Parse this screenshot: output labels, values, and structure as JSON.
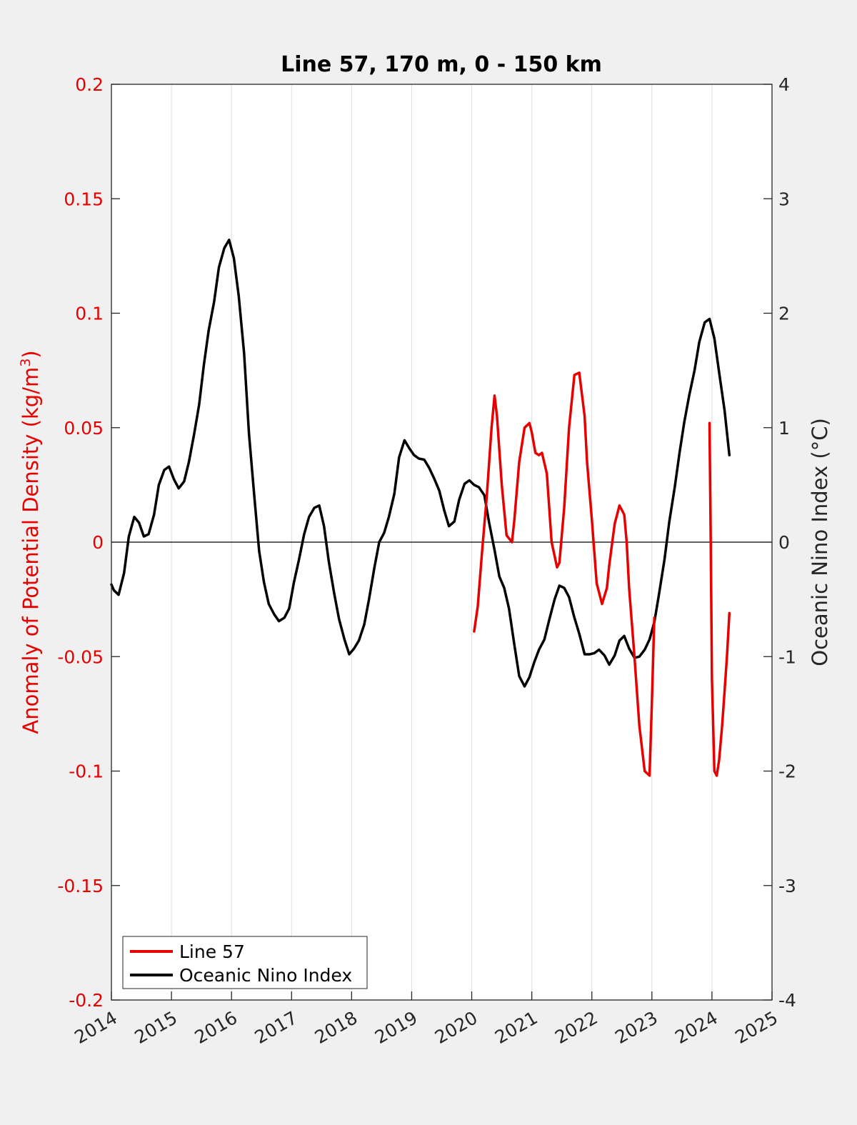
{
  "chart_data": {
    "type": "line",
    "title": "Line 57, 170 m, 0 - 150 km",
    "ylabel_left": "Anomaly of Potential Density (kg/m",
    "ylabel_left_sup": "3",
    "ylabel_left_close": ")",
    "ylabel_right": "Oceanic Nino Index (°C)",
    "xlim": [
      2014,
      2025
    ],
    "ylim_left": [
      -0.2,
      0.2
    ],
    "ylim_right": [
      -4,
      4
    ],
    "x_ticks": [
      "2014",
      "2015",
      "2016",
      "2017",
      "2018",
      "2019",
      "2020",
      "2021",
      "2022",
      "2023",
      "2024",
      "2025"
    ],
    "y_left_ticks": [
      "0.2",
      "0.15",
      "0.1",
      "0.05",
      "0",
      "-0.05",
      "-0.1",
      "-0.15",
      "-0.2"
    ],
    "y_right_ticks": [
      "4",
      "3",
      "2",
      "1",
      "0",
      "-1",
      "-2",
      "-3",
      "-4"
    ],
    "grid": "vertical",
    "legend_position": "bottom-left",
    "series": [
      {
        "name": "Line 57",
        "axis": "left",
        "color": "#e60000",
        "segments": [
          {
            "x": [
              2020.04,
              2020.1,
              2020.17,
              2020.25,
              2020.33,
              2020.38,
              2020.42,
              2020.5,
              2020.58,
              2020.67,
              2020.71,
              2020.79,
              2020.88,
              2020.96,
              2021.0,
              2021.06,
              2021.12,
              2021.17,
              2021.25,
              2021.33,
              2021.42,
              2021.46,
              2021.54,
              2021.62,
              2021.71,
              2021.79,
              2021.88,
              2021.92,
              2022.0,
              2022.08,
              2022.17,
              2022.25,
              2022.29,
              2022.38,
              2022.46,
              2022.54,
              2022.58,
              2022.62,
              2022.71,
              2022.79,
              2022.88,
              2022.96,
              2023.0,
              2023.04
            ],
            "y": [
              -0.039,
              -0.028,
              -0.005,
              0.02,
              0.05,
              0.064,
              0.055,
              0.025,
              0.003,
              0.0,
              0.01,
              0.035,
              0.05,
              0.052,
              0.048,
              0.039,
              0.038,
              0.039,
              0.03,
              0.0,
              -0.011,
              -0.009,
              0.015,
              0.05,
              0.073,
              0.074,
              0.055,
              0.035,
              0.01,
              -0.018,
              -0.027,
              -0.02,
              -0.01,
              0.008,
              0.016,
              0.012,
              0.0,
              -0.02,
              -0.05,
              -0.08,
              -0.1,
              -0.102,
              -0.07,
              -0.033
            ]
          },
          {
            "x": [
              2023.96,
              2023.98,
              2024.0,
              2024.04,
              2024.08,
              2024.12,
              2024.17,
              2024.21,
              2024.25,
              2024.29
            ],
            "y": [
              0.052,
              0.0,
              -0.06,
              -0.1,
              -0.102,
              -0.095,
              -0.08,
              -0.065,
              -0.05,
              -0.031
            ]
          }
        ]
      },
      {
        "name": "Oceanic Nino Index",
        "axis": "right",
        "color": "#000000",
        "x": [
          2014.0,
          2014.04,
          2014.12,
          2014.21,
          2014.29,
          2014.38,
          2014.46,
          2014.54,
          2014.62,
          2014.71,
          2014.79,
          2014.88,
          2014.96,
          2015.04,
          2015.12,
          2015.21,
          2015.29,
          2015.38,
          2015.46,
          2015.54,
          2015.62,
          2015.71,
          2015.79,
          2015.88,
          2015.96,
          2016.04,
          2016.12,
          2016.21,
          2016.29,
          2016.38,
          2016.46,
          2016.54,
          2016.62,
          2016.71,
          2016.79,
          2016.88,
          2016.96,
          2017.04,
          2017.12,
          2017.21,
          2017.29,
          2017.38,
          2017.46,
          2017.54,
          2017.62,
          2017.71,
          2017.79,
          2017.88,
          2017.96,
          2018.04,
          2018.12,
          2018.21,
          2018.29,
          2018.38,
          2018.46,
          2018.54,
          2018.62,
          2018.71,
          2018.79,
          2018.88,
          2018.96,
          2019.04,
          2019.12,
          2019.21,
          2019.29,
          2019.38,
          2019.46,
          2019.54,
          2019.62,
          2019.71,
          2019.79,
          2019.88,
          2019.96,
          2020.04,
          2020.12,
          2020.21,
          2020.29,
          2020.38,
          2020.46,
          2020.54,
          2020.62,
          2020.71,
          2020.79,
          2020.88,
          2020.96,
          2021.04,
          2021.12,
          2021.21,
          2021.29,
          2021.38,
          2021.46,
          2021.54,
          2021.62,
          2021.71,
          2021.79,
          2021.88,
          2021.96,
          2022.04,
          2022.12,
          2022.21,
          2022.29,
          2022.38,
          2022.46,
          2022.54,
          2022.62,
          2022.71,
          2022.79,
          2022.88,
          2022.96,
          2023.04,
          2023.12,
          2023.21,
          2023.29,
          2023.38,
          2023.46,
          2023.54,
          2023.62,
          2023.71,
          2023.79,
          2023.88,
          2023.96,
          2024.04,
          2024.12,
          2024.21,
          2024.29
        ],
        "y": [
          -0.37,
          -0.42,
          -0.46,
          -0.27,
          0.05,
          0.22,
          0.17,
          0.05,
          0.07,
          0.24,
          0.5,
          0.63,
          0.66,
          0.55,
          0.47,
          0.53,
          0.7,
          0.95,
          1.2,
          1.55,
          1.85,
          2.1,
          2.4,
          2.57,
          2.64,
          2.48,
          2.15,
          1.65,
          0.95,
          0.4,
          -0.08,
          -0.35,
          -0.54,
          -0.63,
          -0.69,
          -0.66,
          -0.58,
          -0.35,
          -0.16,
          0.07,
          0.22,
          0.3,
          0.32,
          0.14,
          -0.17,
          -0.45,
          -0.67,
          -0.85,
          -0.98,
          -0.93,
          -0.86,
          -0.72,
          -0.5,
          -0.22,
          0.0,
          0.08,
          0.22,
          0.42,
          0.74,
          0.89,
          0.82,
          0.76,
          0.73,
          0.72,
          0.65,
          0.55,
          0.45,
          0.28,
          0.14,
          0.18,
          0.37,
          0.51,
          0.54,
          0.5,
          0.48,
          0.41,
          0.17,
          -0.07,
          -0.3,
          -0.4,
          -0.58,
          -0.9,
          -1.17,
          -1.26,
          -1.18,
          -1.05,
          -0.94,
          -0.85,
          -0.68,
          -0.5,
          -0.38,
          -0.4,
          -0.48,
          -0.66,
          -0.8,
          -0.98,
          -0.98,
          -0.97,
          -0.94,
          -0.99,
          -1.07,
          -0.99,
          -0.86,
          -0.82,
          -0.93,
          -1.01,
          -1.0,
          -0.94,
          -0.85,
          -0.7,
          -0.45,
          -0.15,
          0.18,
          0.48,
          0.78,
          1.05,
          1.28,
          1.5,
          1.75,
          1.92,
          1.95,
          1.78,
          1.48,
          1.15,
          0.76
        ]
      }
    ]
  }
}
